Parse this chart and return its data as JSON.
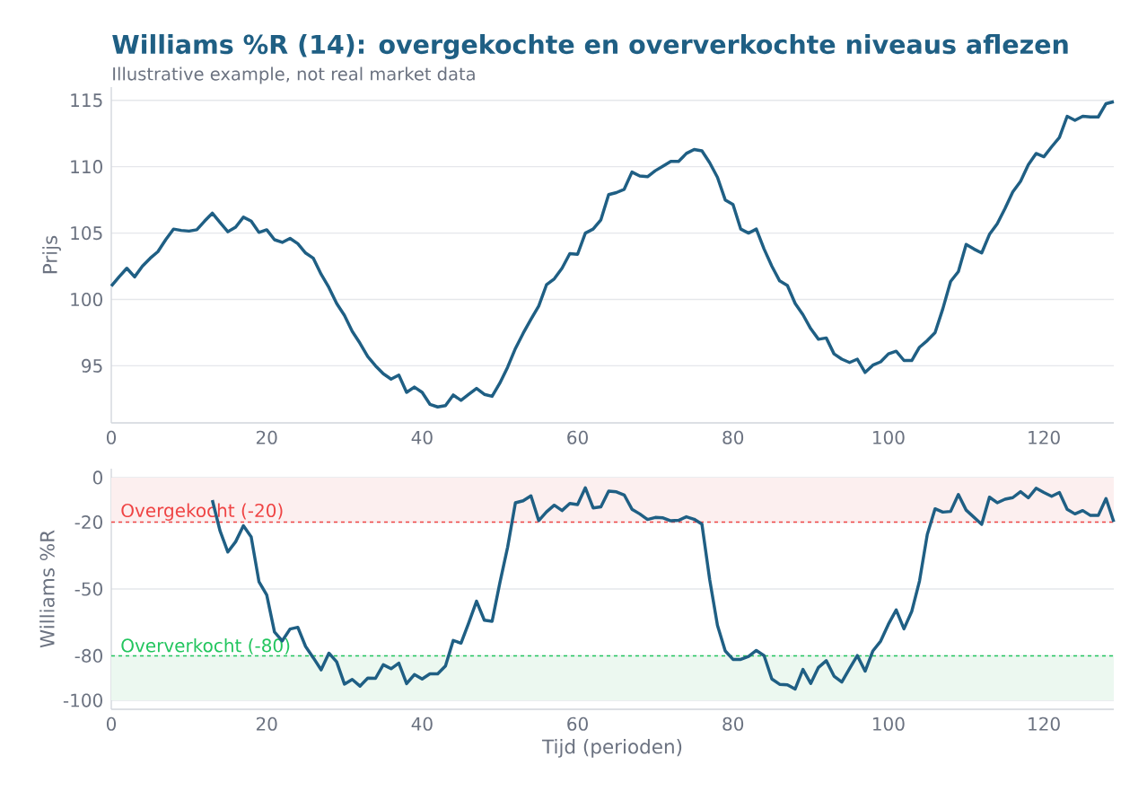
{
  "chart_data": [
    {
      "type": "line",
      "title": "Williams %R (14): overgekochte en oververkochte niveaus aflezen",
      "subtitle": "Illustrative example, not real market data",
      "ylabel": "Prijs",
      "color": "#1f5f84",
      "grid": "y",
      "xlim": [
        0,
        129
      ],
      "ylim": [
        90.7,
        116
      ],
      "xticks": [
        0,
        20,
        40,
        60,
        80,
        100,
        120
      ],
      "yticks": [
        95,
        100,
        105,
        110,
        115
      ],
      "x": [
        0,
        1,
        2,
        3,
        4,
        5,
        6,
        7,
        8,
        9,
        10,
        11,
        12,
        13,
        14,
        15,
        16,
        17,
        18,
        19,
        20,
        21,
        22,
        23,
        24,
        25,
        26,
        27,
        28,
        29,
        30,
        31,
        32,
        33,
        34,
        35,
        36,
        37,
        38,
        39,
        40,
        41,
        42,
        43,
        44,
        45,
        46,
        47,
        48,
        49,
        50,
        51,
        52,
        53,
        54,
        55,
        56,
        57,
        58,
        59,
        60,
        61,
        62,
        63,
        64,
        65,
        66,
        67,
        68,
        69,
        70,
        71,
        72,
        73,
        74,
        75,
        76,
        77,
        78,
        79,
        80,
        81,
        82,
        83,
        84,
        85,
        86,
        87,
        88,
        89,
        90,
        91,
        92,
        93,
        94,
        95,
        96,
        97,
        98,
        99,
        100,
        101,
        102,
        103,
        104,
        105,
        106,
        107,
        108,
        109,
        110,
        111,
        112,
        113,
        114,
        115,
        116,
        117,
        118,
        119,
        120,
        121,
        122,
        123,
        124,
        125,
        126,
        127,
        128,
        129
      ],
      "values": [
        101.0,
        101.7,
        102.35,
        101.7,
        102.5,
        103.1,
        103.6,
        104.5,
        105.3,
        105.2,
        105.15,
        105.25,
        105.9,
        106.5,
        105.8,
        105.1,
        105.45,
        106.2,
        105.9,
        105.05,
        105.25,
        104.5,
        104.3,
        104.6,
        104.2,
        103.5,
        103.1,
        101.9,
        100.9,
        99.7,
        98.8,
        97.6,
        96.7,
        95.7,
        95.0,
        94.4,
        94.0,
        94.3,
        93.0,
        93.4,
        93.0,
        92.1,
        91.9,
        92.0,
        92.8,
        92.4,
        92.85,
        93.3,
        92.85,
        92.7,
        93.7,
        94.9,
        96.3,
        97.45,
        98.5,
        99.5,
        101.1,
        101.55,
        102.35,
        103.45,
        103.4,
        105.0,
        105.3,
        106.0,
        107.9,
        108.05,
        108.3,
        109.6,
        109.3,
        109.25,
        109.7,
        110.05,
        110.4,
        110.4,
        111.0,
        111.3,
        111.2,
        110.3,
        109.2,
        107.5,
        107.15,
        105.3,
        105.0,
        105.3,
        103.8,
        102.5,
        101.4,
        101.05,
        99.7,
        98.85,
        97.8,
        97.0,
        97.1,
        95.9,
        95.5,
        95.25,
        95.5,
        94.5,
        95.05,
        95.3,
        95.9,
        96.1,
        95.4,
        95.4,
        96.4,
        96.9,
        97.5,
        99.3,
        101.35,
        102.1,
        104.15,
        103.8,
        103.5,
        104.9,
        105.7,
        106.85,
        108.1,
        108.9,
        110.15,
        111.0,
        110.75,
        111.5,
        112.2,
        113.8,
        113.5,
        113.8,
        113.75,
        113.75,
        114.75,
        114.9
      ]
    },
    {
      "type": "line",
      "xlabel": "Tijd (perioden)",
      "ylabel": "Williams %R",
      "color": "#1f5f84",
      "grid": "y",
      "xlim": [
        0,
        129
      ],
      "ylim": [
        -104,
        4
      ],
      "xticks": [
        0,
        20,
        40,
        60,
        80,
        100,
        120
      ],
      "yticks": [
        -100,
        -80,
        -50,
        -20,
        0
      ],
      "bands": [
        {
          "axis": "y",
          "from": -20,
          "to": 0,
          "color": "#fcefef"
        },
        {
          "axis": "y",
          "from": -100,
          "to": -80,
          "color": "#ecf8f0"
        }
      ],
      "ref_lines": [
        {
          "axis": "y",
          "value": -20,
          "label": "Overgekocht (-20)",
          "color": "#ef4444",
          "line_style": "dashed"
        },
        {
          "axis": "y",
          "value": -80,
          "label": "Oververkocht (-80)",
          "color": "#22c55e",
          "line_style": "dashed"
        }
      ],
      "x": [
        13,
        14,
        15,
        16,
        17,
        18,
        19,
        20,
        21,
        22,
        23,
        24,
        25,
        26,
        27,
        28,
        29,
        30,
        31,
        32,
        33,
        34,
        35,
        36,
        37,
        38,
        39,
        40,
        41,
        42,
        43,
        44,
        45,
        46,
        47,
        48,
        49,
        50,
        51,
        52,
        53,
        54,
        55,
        56,
        57,
        58,
        59,
        60,
        61,
        62,
        63,
        64,
        65,
        66,
        67,
        68,
        69,
        70,
        71,
        72,
        73,
        74,
        75,
        76,
        77,
        78,
        79,
        80,
        81,
        82,
        83,
        84,
        85,
        86,
        87,
        88,
        89,
        90,
        91,
        92,
        93,
        94,
        95,
        96,
        97,
        98,
        99,
        100,
        101,
        102,
        103,
        104,
        105,
        106,
        107,
        108,
        109,
        110,
        111,
        112,
        113,
        114,
        115,
        116,
        117,
        118,
        119,
        120,
        121,
        122,
        123,
        124,
        125,
        126,
        127,
        128,
        129
      ],
      "values": [
        -10.1,
        -24,
        -33.4,
        -28.8,
        -21.6,
        -26.6,
        -46.7,
        -52.7,
        -69.3,
        -73.3,
        -68,
        -67.2,
        -75.8,
        -80.9,
        -86.3,
        -78.8,
        -82.7,
        -92.7,
        -90.6,
        -93.6,
        -90,
        -90.1,
        -84,
        -85.8,
        -83.3,
        -92.5,
        -88.4,
        -90.4,
        -88.1,
        -88.1,
        -84.6,
        -73.1,
        -74.3,
        -65.2,
        -55.5,
        -64,
        -64.5,
        -47.2,
        -31.2,
        -11.3,
        -10.4,
        -8.2,
        -19.3,
        -15.4,
        -12.4,
        -14.8,
        -11.6,
        -12.1,
        -4.6,
        -13.6,
        -13.1,
        -6.1,
        -6.4,
        -7.8,
        -14.2,
        -16.3,
        -18.8,
        -17.9,
        -18.1,
        -19.4,
        -19.2,
        -17.6,
        -18.7,
        -20.9,
        -45.8,
        -66.3,
        -77.8,
        -81.6,
        -81.6,
        -80.3,
        -77.6,
        -79.9,
        -90.4,
        -92.8,
        -93,
        -94.9,
        -86.1,
        -92.4,
        -85.2,
        -82.2,
        -89.1,
        -91.8,
        -85.7,
        -79.9,
        -86.9,
        -77.8,
        -73.4,
        -65.8,
        -59.4,
        -67.9,
        -60.1,
        -46.4,
        -25.5,
        -14,
        -15.5,
        -15.2,
        -7.6,
        -14.6,
        -17.8,
        -21,
        -8.8,
        -11.3,
        -9.7,
        -9,
        -6.3,
        -9.1,
        -4.8,
        -6.7,
        -8.4,
        -6.7,
        -14.2,
        -16.3,
        -14.8,
        -17,
        -17,
        -9.4,
        -19.9
      ]
    }
  ]
}
